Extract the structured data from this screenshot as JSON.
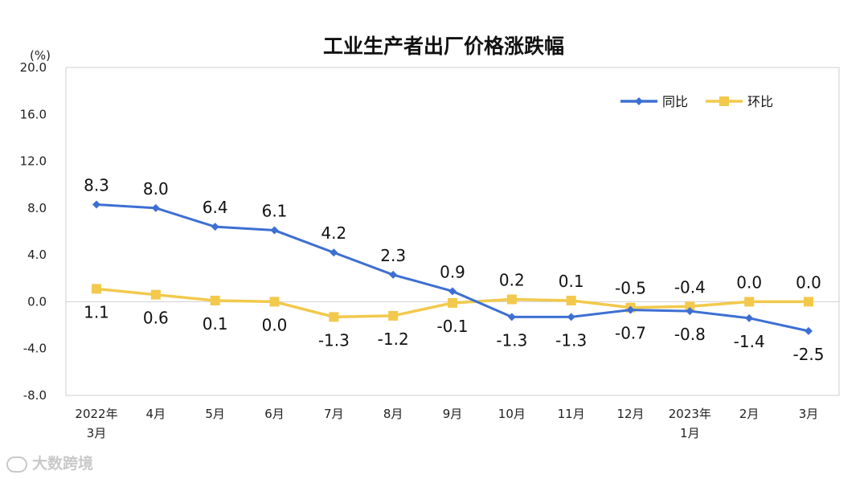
{
  "chart_data": {
    "type": "line",
    "title": "工业生产者出厂价格涨跌幅",
    "unit_label": "(%)",
    "categories": [
      "2022年\n3月",
      "4月",
      "5月",
      "6月",
      "7月",
      "8月",
      "9月",
      "10月",
      "11月",
      "12月",
      "2023年\n1月",
      "2月",
      "3月"
    ],
    "series": [
      {
        "name": "同比",
        "color": "#3d6fd3",
        "marker": "diamond",
        "values": [
          8.3,
          8.0,
          6.4,
          6.1,
          4.2,
          2.3,
          0.9,
          -1.3,
          -1.3,
          -0.7,
          -0.8,
          -1.4,
          -2.5
        ]
      },
      {
        "name": "环比",
        "color": "#f2c94c",
        "marker": "square",
        "values": [
          1.1,
          0.6,
          0.1,
          0.0,
          -1.3,
          -1.2,
          -0.1,
          0.2,
          0.1,
          -0.5,
          -0.4,
          0.0,
          0.0
        ]
      }
    ],
    "ylim": [
      -8.0,
      20.0
    ],
    "yticks": [
      "20.0",
      "16.0",
      "12.0",
      "8.0",
      "4.0",
      "0.0",
      "-4.0",
      "-8.0"
    ],
    "legend": "top-right",
    "grid": false
  },
  "watermark": "大数跨境"
}
